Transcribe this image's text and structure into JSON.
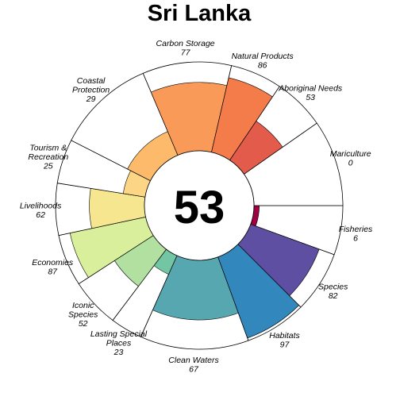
{
  "chart_data": {
    "type": "flower",
    "title": "Sri Lanka",
    "score": "53",
    "value_max": 100,
    "petals": [
      {
        "name": "Fisheries",
        "lines": [
          "Fisheries"
        ],
        "value": 6,
        "color": "#9E0142",
        "start_deg": 0,
        "end_deg": 20
      },
      {
        "name": "Species",
        "lines": [
          "Species"
        ],
        "value": 82,
        "color": "#5E4FA2",
        "start_deg": 20,
        "end_deg": 45
      },
      {
        "name": "Habitats",
        "lines": [
          "Habitats"
        ],
        "value": 97,
        "color": "#3288BD",
        "start_deg": 45,
        "end_deg": 70
      },
      {
        "name": "Clean Waters",
        "lines": [
          "Clean Waters"
        ],
        "value": 67,
        "color": "#57A7B0",
        "start_deg": 70,
        "end_deg": 114
      },
      {
        "name": "Lasting Special Places",
        "lines": [
          "Lasting Special",
          "Places"
        ],
        "value": 23,
        "color": "#72C6A4",
        "start_deg": 114,
        "end_deg": 127
      },
      {
        "name": "Iconic Species",
        "lines": [
          "Iconic",
          "Species"
        ],
        "value": 52,
        "color": "#B2E0A1",
        "start_deg": 127,
        "end_deg": 147
      },
      {
        "name": "Economies",
        "lines": [
          "Economies"
        ],
        "value": 87,
        "color": "#D9EF9B",
        "start_deg": 147,
        "end_deg": 168
      },
      {
        "name": "Livelihoods",
        "lines": [
          "Livelihoods"
        ],
        "value": 62,
        "color": "#F5E68F",
        "start_deg": 168,
        "end_deg": 189
      },
      {
        "name": "Tourism & Recreation",
        "lines": [
          "Tourism &",
          "Recreation"
        ],
        "value": 25,
        "color": "#FDD685",
        "start_deg": 189,
        "end_deg": 207
      },
      {
        "name": "Coastal Protection",
        "lines": [
          "Coastal",
          "Protection"
        ],
        "value": 29,
        "color": "#FDBA6B",
        "start_deg": 207,
        "end_deg": 247
      },
      {
        "name": "Carbon Storage",
        "lines": [
          "Carbon Storage"
        ],
        "value": 77,
        "color": "#FA9A58",
        "start_deg": 247,
        "end_deg": 283
      },
      {
        "name": "Natural Products",
        "lines": [
          "Natural Products"
        ],
        "value": 86,
        "color": "#F47B4A",
        "start_deg": 283,
        "end_deg": 304
      },
      {
        "name": "Aboriginal Needs",
        "lines": [
          "Aboriginal Needs"
        ],
        "value": 53,
        "color": "#E35B4A",
        "start_deg": 304,
        "end_deg": 325
      },
      {
        "name": "Mariculture",
        "lines": [
          "Mariculture"
        ],
        "value": 0,
        "color": "#D0364D",
        "start_deg": 325,
        "end_deg": 360
      }
    ]
  }
}
